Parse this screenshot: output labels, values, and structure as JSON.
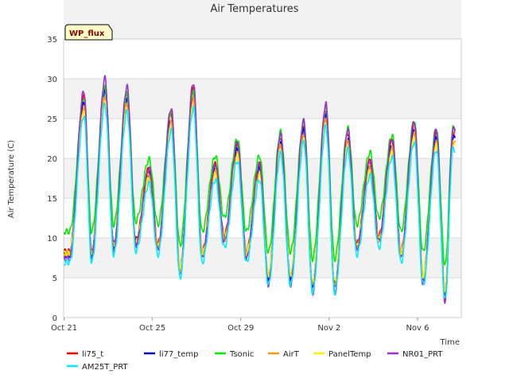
{
  "chart_data": {
    "type": "line",
    "title": "Air Temperatures",
    "xlabel": "Time",
    "ylabel": "Air Temperature (C)",
    "badge": "WP_flux",
    "ylim": [
      0,
      35
    ],
    "xlim_days": [
      0,
      18
    ],
    "yticks": [
      0,
      5,
      10,
      15,
      20,
      25,
      30,
      35
    ],
    "xticks": [
      {
        "day": 0,
        "label": "Oct 21"
      },
      {
        "day": 4,
        "label": "Oct 25"
      },
      {
        "day": 8,
        "label": "Oct 29"
      },
      {
        "day": 12,
        "label": "Nov 2"
      },
      {
        "day": 16,
        "label": "Nov 6"
      }
    ],
    "daily": {
      "days": [
        0.2,
        1,
        2,
        3,
        4,
        5,
        6,
        7,
        8,
        9,
        10,
        11,
        12,
        13,
        14,
        15,
        16,
        17
      ],
      "peak_hours": [
        0.9,
        1.85,
        2.85,
        3.85,
        4.85,
        5.85,
        6.85,
        7.85,
        8.85,
        9.8,
        10.85,
        11.85,
        12.85,
        13.85,
        14.85,
        15.85,
        16.85,
        17.6
      ],
      "reference_max": [
        27.5,
        29.0,
        28.0,
        18.5,
        25.5,
        28.5,
        19.0,
        21.5,
        19.0,
        22.5,
        24.0,
        26.0,
        23.0,
        19.5,
        22.0,
        24.0,
        23.0,
        23.0
      ],
      "reference_min": [
        8.0,
        8.0,
        9.0,
        9.5,
        9.0,
        6.0,
        8.0,
        10.0,
        8.0,
        5.0,
        5.0,
        4.0,
        4.0,
        9.0,
        10.0,
        8.0,
        5.0,
        3.0
      ]
    },
    "series": [
      {
        "name": "li75_t",
        "color": "#ff0000",
        "offset_max": 0.5,
        "offset_min": 0.3
      },
      {
        "name": "li77_temp",
        "color": "#0000cd",
        "offset_max": -0.8,
        "offset_min": 0.0
      },
      {
        "name": "Tsonic",
        "color": "#00ee00",
        "offset_max": 2.2,
        "offset_min": 3.5
      },
      {
        "name": "AirT",
        "color": "#ff9900",
        "offset_max": -1.5,
        "offset_min": 0.2
      },
      {
        "name": "PanelTemp",
        "color": "#ffee00",
        "offset_max": -2.3,
        "offset_min": 0.5
      },
      {
        "name": "NR01_PRT",
        "color": "#9933cc",
        "offset_max": 0.8,
        "offset_min": -1.0
      },
      {
        "name": "AM25T_PRT",
        "color": "#00eeff",
        "offset_max": -3.5,
        "offset_min": -0.8
      }
    ]
  }
}
